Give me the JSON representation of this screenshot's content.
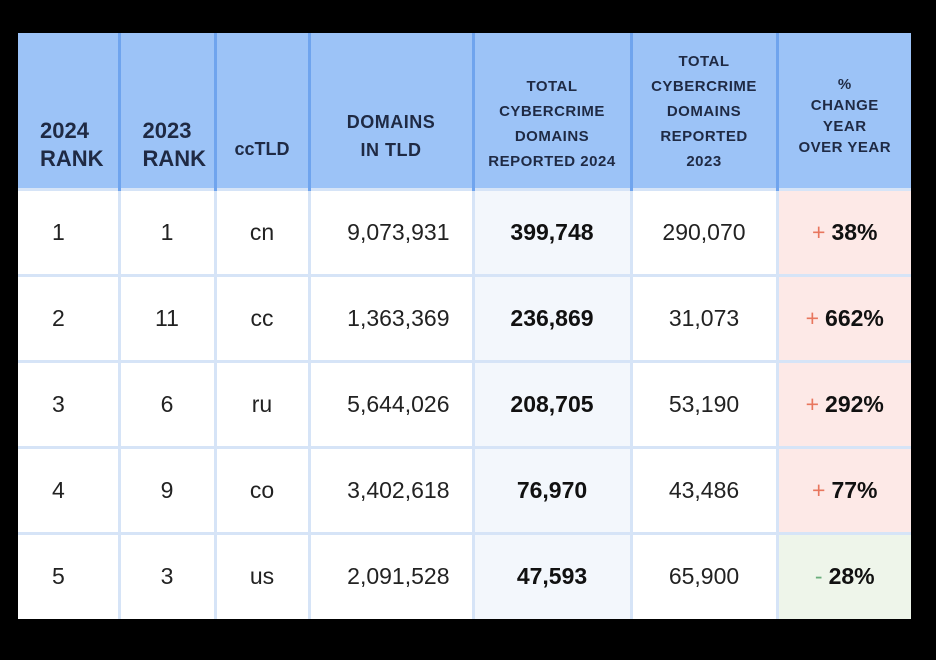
{
  "table": {
    "headers": [
      {
        "label": "2024\nRANK"
      },
      {
        "label": "2023\nRANK"
      },
      {
        "label": "ccTLD"
      },
      {
        "label": "DOMAINS\nIN TLD"
      },
      {
        "label": "TOTAL\nCYBERCRIME\nDOMAINS\nREPORTED 2024"
      },
      {
        "label": "TOTAL\nCYBERCRIME\nDOMAINS\nREPORTED\n2023"
      },
      {
        "label": "%\nCHANGE\nYEAR\nOVER YEAR"
      }
    ],
    "rows": [
      {
        "rank2024": "1",
        "rank2023": "1",
        "cctld": "cn",
        "domains": "9,073,931",
        "total2024": "399,748",
        "total2023": "290,070",
        "sign": "+",
        "change": "38%",
        "direction": "up"
      },
      {
        "rank2024": "2",
        "rank2023": "11",
        "cctld": "cc",
        "domains": "1,363,369",
        "total2024": "236,869",
        "total2023": "31,073",
        "sign": "+",
        "change": "662%",
        "direction": "up"
      },
      {
        "rank2024": "3",
        "rank2023": "6",
        "cctld": "ru",
        "domains": "5,644,026",
        "total2024": "208,705",
        "total2023": "53,190",
        "sign": "+",
        "change": "292%",
        "direction": "up"
      },
      {
        "rank2024": "4",
        "rank2023": "9",
        "cctld": "co",
        "domains": "3,402,618",
        "total2024": "76,970",
        "total2023": "43,486",
        "sign": "+",
        "change": "77%",
        "direction": "up"
      },
      {
        "rank2024": "5",
        "rank2023": "3",
        "cctld": "us",
        "domains": "2,091,528",
        "total2024": "47,593",
        "total2023": "65,900",
        "sign": "-",
        "change": "28%",
        "direction": "down"
      }
    ]
  },
  "colors": {
    "header_bg": "#9cc3f7",
    "increase": "#e8765e",
    "decrease": "#8cc09a",
    "page_bg": "#000000"
  }
}
